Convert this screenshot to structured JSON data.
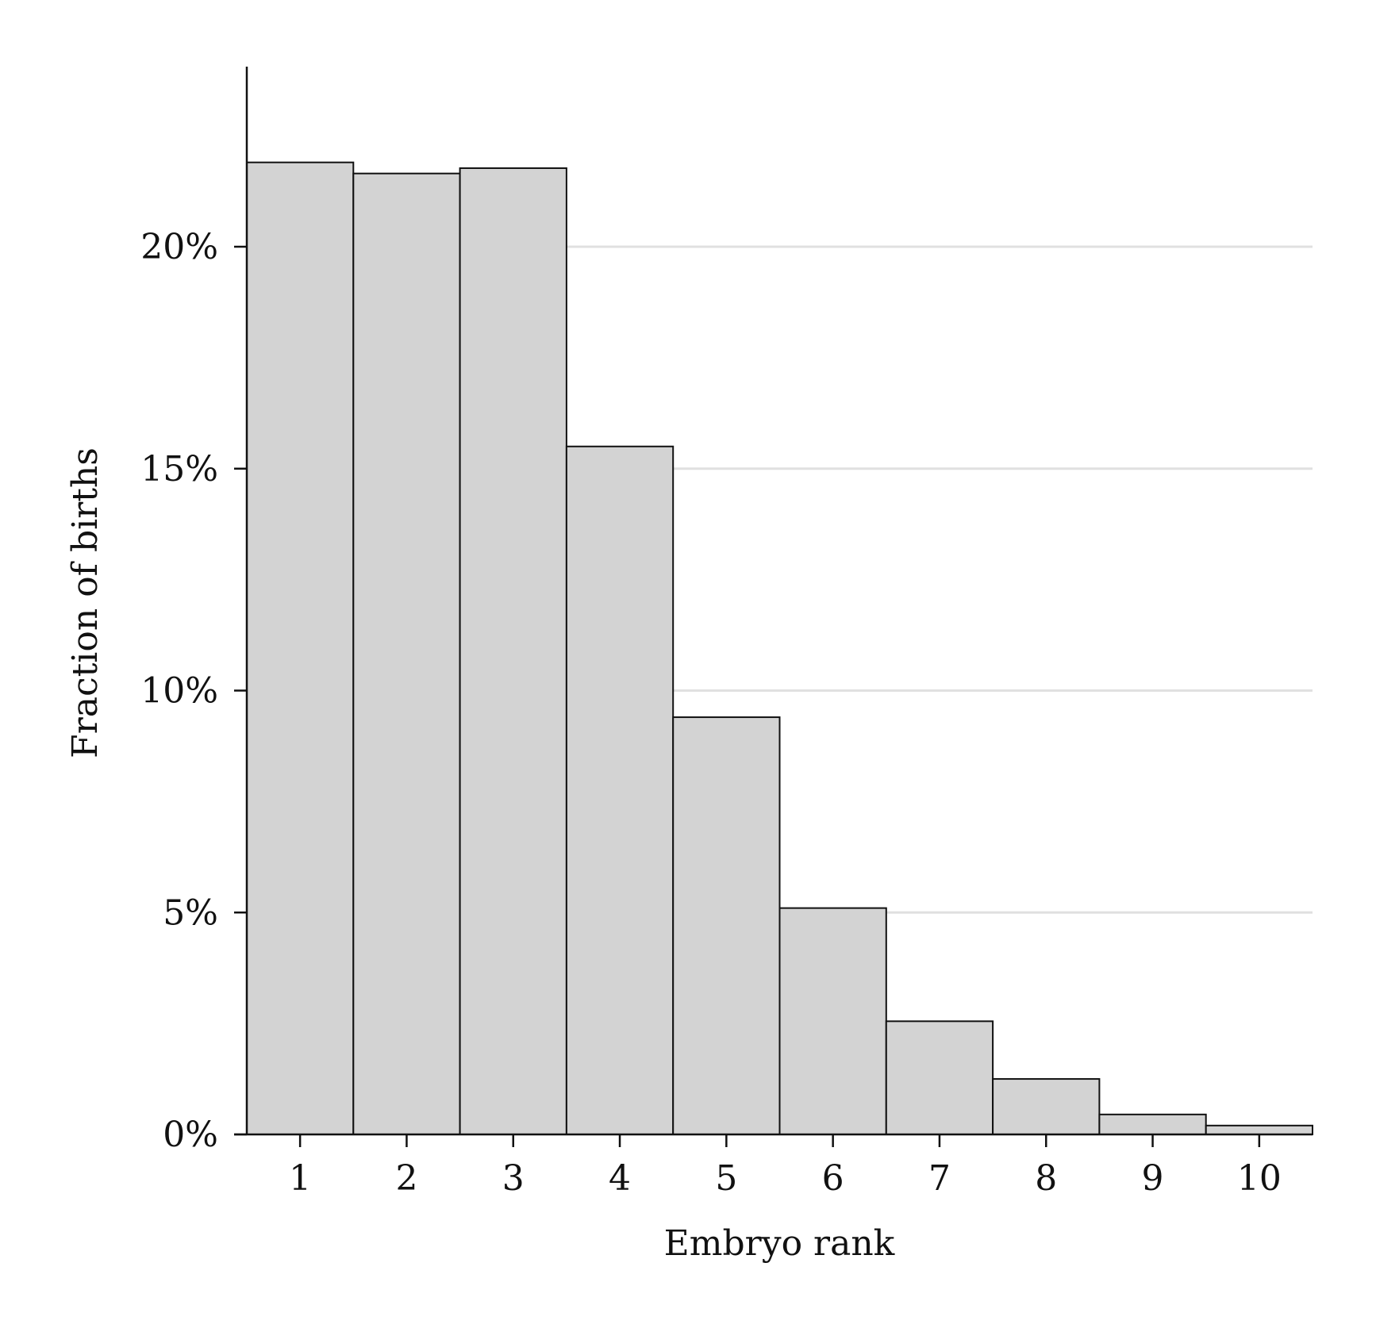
{
  "chart_data": {
    "type": "bar",
    "xlabel": "Embryo rank",
    "ylabel": "Fraction of births",
    "categories": [
      "1",
      "2",
      "3",
      "4",
      "5",
      "6",
      "7",
      "8",
      "9",
      "10"
    ],
    "values": [
      21.9,
      21.65,
      21.77,
      15.5,
      9.4,
      5.1,
      2.55,
      1.25,
      0.45,
      0.2
    ],
    "ylim": [
      0,
      24
    ],
    "yticks": [
      0,
      5,
      10,
      15,
      20
    ],
    "ytick_labels": [
      "0%",
      "5%",
      "10%",
      "15%",
      "20%"
    ],
    "grid": "horizontal",
    "colors": {
      "bar_fill": "#d3d3d3",
      "bar_edge": "#111111",
      "grid": "#e0e0e0",
      "axis": "#111111"
    }
  }
}
